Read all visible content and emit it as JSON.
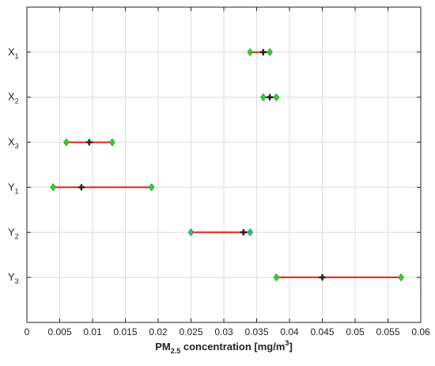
{
  "chart_data": {
    "type": "scatter",
    "subtype": "interval-plot",
    "title": "",
    "xlabel": {
      "main": "PM",
      "sub": "2.5",
      "rest": " concentration [mg/m",
      "sup": "3",
      "close": "]"
    },
    "ylabel": "",
    "xlim": [
      0,
      0.06
    ],
    "xticks": [
      "0",
      "0.005",
      "0.01",
      "0.015",
      "0.02",
      "0.025",
      "0.03",
      "0.035",
      "0.04",
      "0.045",
      "0.05",
      "0.055",
      "0.06"
    ],
    "xtick_values": [
      0,
      0.005,
      0.01,
      0.015,
      0.02,
      0.025,
      0.03,
      0.035,
      0.04,
      0.045,
      0.05,
      0.055,
      0.06
    ],
    "grid": true,
    "legend": "none",
    "categories": [
      {
        "base": "X",
        "sub": "1",
        "min": 0.034,
        "point": 0.036,
        "max": 0.037,
        "marker_color": "#22dd22"
      },
      {
        "base": "X",
        "sub": "2",
        "min": 0.036,
        "point": 0.037,
        "max": 0.038,
        "marker_color": "#22dd22"
      },
      {
        "base": "X",
        "sub": "3",
        "min": 0.006,
        "point": 0.0095,
        "max": 0.013,
        "marker_color": "#22dd22"
      },
      {
        "base": "Y",
        "sub": "1",
        "min": 0.004,
        "point": 0.0083,
        "max": 0.019,
        "marker_color": "#22dd22"
      },
      {
        "base": "Y",
        "sub": "2",
        "min": 0.025,
        "point": 0.033,
        "max": 0.034,
        "marker_color": "#2ab8b0"
      },
      {
        "base": "Y",
        "sub": "3",
        "min": 0.038,
        "point": 0.045,
        "max": 0.057,
        "marker_color": "#22dd22"
      }
    ],
    "colors": {
      "range_line": "#e8201a",
      "point_marker": "#222222",
      "grid": "#dcdcdc",
      "axes": "#222222"
    }
  }
}
